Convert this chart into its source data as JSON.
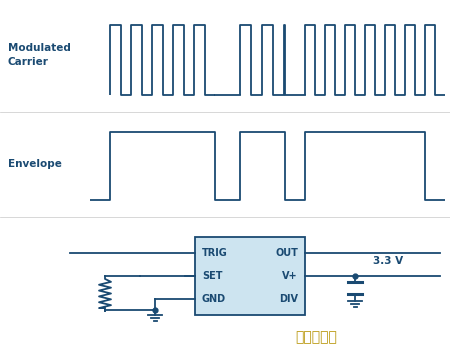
{
  "bg_color": "#ffffff",
  "line_color": "#1a4a72",
  "box_fill": "#cde4f0",
  "box_edge": "#1a4a72",
  "text_color": "#1a4a72",
  "watermark_color": "#b8960a",
  "fig_width": 4.5,
  "fig_height": 3.52,
  "dpi": 100,
  "modulated_label": "Modulated\nCarrier",
  "envelope_label": "Envelope",
  "voltage_label": "3.3 V",
  "box_labels_left": [
    "TRIG",
    "SET",
    "GND"
  ],
  "box_labels_right": [
    "OUT",
    "V+",
    "DIV"
  ],
  "watermark": "第一手游网"
}
